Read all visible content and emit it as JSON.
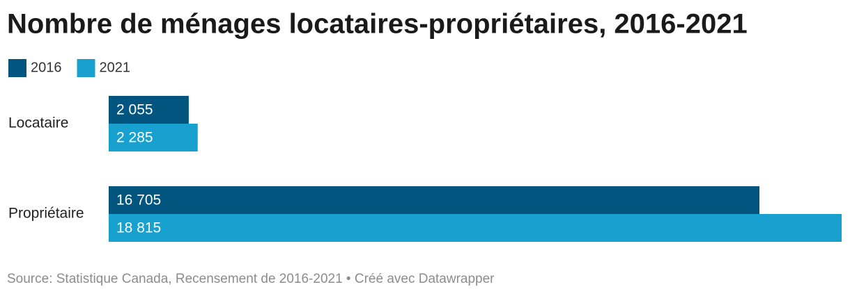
{
  "chart_data": {
    "type": "bar",
    "orientation": "horizontal",
    "title": "Nombre de ménages locataires-propriétaires, 2016-2021",
    "categories": [
      "Locataire",
      "Propriétaire"
    ],
    "series": [
      {
        "name": "2016",
        "color": "#01557f",
        "values": [
          2055,
          16705
        ],
        "value_labels": [
          "2 055",
          "16 705"
        ]
      },
      {
        "name": "2021",
        "color": "#18a1cf",
        "values": [
          2285,
          18815
        ],
        "value_labels": [
          "2 285",
          "18 815"
        ]
      }
    ],
    "source": "Source: Statistique Canada, Recensement de 2016-2021 • Créé avec Datawrapper"
  }
}
